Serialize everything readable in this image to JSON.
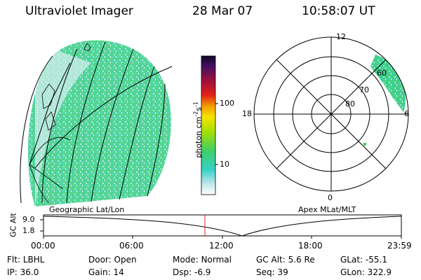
{
  "header": {
    "instrument": "Ultraviolet Imager",
    "date": "28 Mar 07",
    "time": "10:58:07 UT"
  },
  "colorbar": {
    "label": "photon cm",
    "label_exp": "-2",
    "label_s": "s",
    "label_exp2": "-1",
    "ticks": [
      "100",
      "10"
    ]
  },
  "geo_panel": {
    "label": "Geographic Lat/Lon"
  },
  "polar_panel": {
    "label": "Apex MLat/MLT",
    "mlt_labels": {
      "top": "12",
      "left": "18",
      "right": "6",
      "bottom": "0"
    },
    "lat_labels": [
      "60",
      "70",
      "80"
    ]
  },
  "altitude_plot": {
    "ylabel": "GC Alt",
    "yticks": [
      "9.0",
      "1.8"
    ],
    "xticks": [
      "00:00",
      "06:00",
      "12:00",
      "18:00",
      "23:59"
    ],
    "current_time_marker": "10:58"
  },
  "status": {
    "flt_label": "Flt:",
    "flt_value": "LBHL",
    "ip_label": "IP:",
    "ip_value": "36.0",
    "door_label": "Door:",
    "door_value": "Open",
    "gain_label": "Gain:",
    "gain_value": "14",
    "mode_label": "Mode:",
    "mode_value": "Normal",
    "dsp_label": "Dsp:",
    "dsp_value": "-6.9",
    "gcalt_label": "GC Alt:",
    "gcalt_value": "5.6 Re",
    "seq_label": "Seq:",
    "seq_value": "39",
    "glat_label": "GLat:",
    "glat_value": "-55.1",
    "glon_label": "GLon:",
    "glon_value": "322.9"
  },
  "colors": {
    "aurora_green": "#3ecf63",
    "aurora_cyan": "#3fd4c8"
  }
}
